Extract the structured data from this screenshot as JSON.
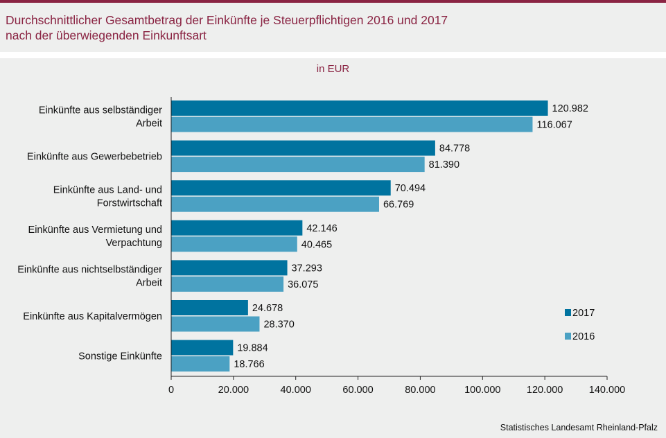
{
  "header": {
    "title_line1": "Durchschnittlicher Gesamtbetrag der Einkünfte je Steuerpflichtigen 2016 und 2017",
    "title_line2": "nach der überwiegenden Einkunftsart",
    "unit": "in EUR"
  },
  "footer": {
    "source": "Statistisches Landesamt Rheinland-Pfalz"
  },
  "colors": {
    "series_2017": "#00739f",
    "series_2016": "#4ba1c3",
    "title": "#8a2443",
    "background": "#eeefee"
  },
  "chart_data": {
    "type": "bar",
    "orientation": "horizontal",
    "title": "Durchschnittlicher Gesamtbetrag der Einkünfte je Steuerpflichtigen 2016 und 2017 nach der überwiegenden Einkunftsart",
    "xlabel": "",
    "ylabel": "",
    "unit": "in EUR",
    "categories": [
      [
        "Einkünfte aus selbständiger",
        "Arbeit"
      ],
      [
        "Einkünfte aus Gewerbebetrieb"
      ],
      [
        "Einkünfte aus Land- und",
        "Forstwirtschaft"
      ],
      [
        "Einkünfte aus Vermietung und",
        "Verpachtung"
      ],
      [
        "Einkünfte aus nichtselbständiger",
        "Arbeit"
      ],
      [
        "Einkünfte aus Kapitalvermögen"
      ],
      [
        "Sonstige Einkünfte"
      ]
    ],
    "series": [
      {
        "name": "2017",
        "values": [
          120982,
          84778,
          70494,
          42146,
          37293,
          24678,
          19884
        ],
        "labels": [
          "120.982",
          "84.778",
          "70.494",
          "42.146",
          "37.293",
          "24.678",
          "19.884"
        ]
      },
      {
        "name": "2016",
        "values": [
          116067,
          81390,
          66769,
          40465,
          36075,
          28370,
          18766
        ],
        "labels": [
          "116.067",
          "81.390",
          "66.769",
          "40.465",
          "36.075",
          "28.370",
          "18.766"
        ]
      }
    ],
    "xlim": [
      0,
      140000
    ],
    "ticks": [
      0,
      20000,
      40000,
      60000,
      80000,
      100000,
      120000,
      140000
    ],
    "tick_labels": [
      "0",
      "20.000",
      "40.000",
      "60.000",
      "80.000",
      "100.000",
      "120.000",
      "140.000"
    ],
    "grid": false,
    "legend": {
      "position": "right",
      "entries": [
        "2017",
        "2016"
      ]
    }
  }
}
